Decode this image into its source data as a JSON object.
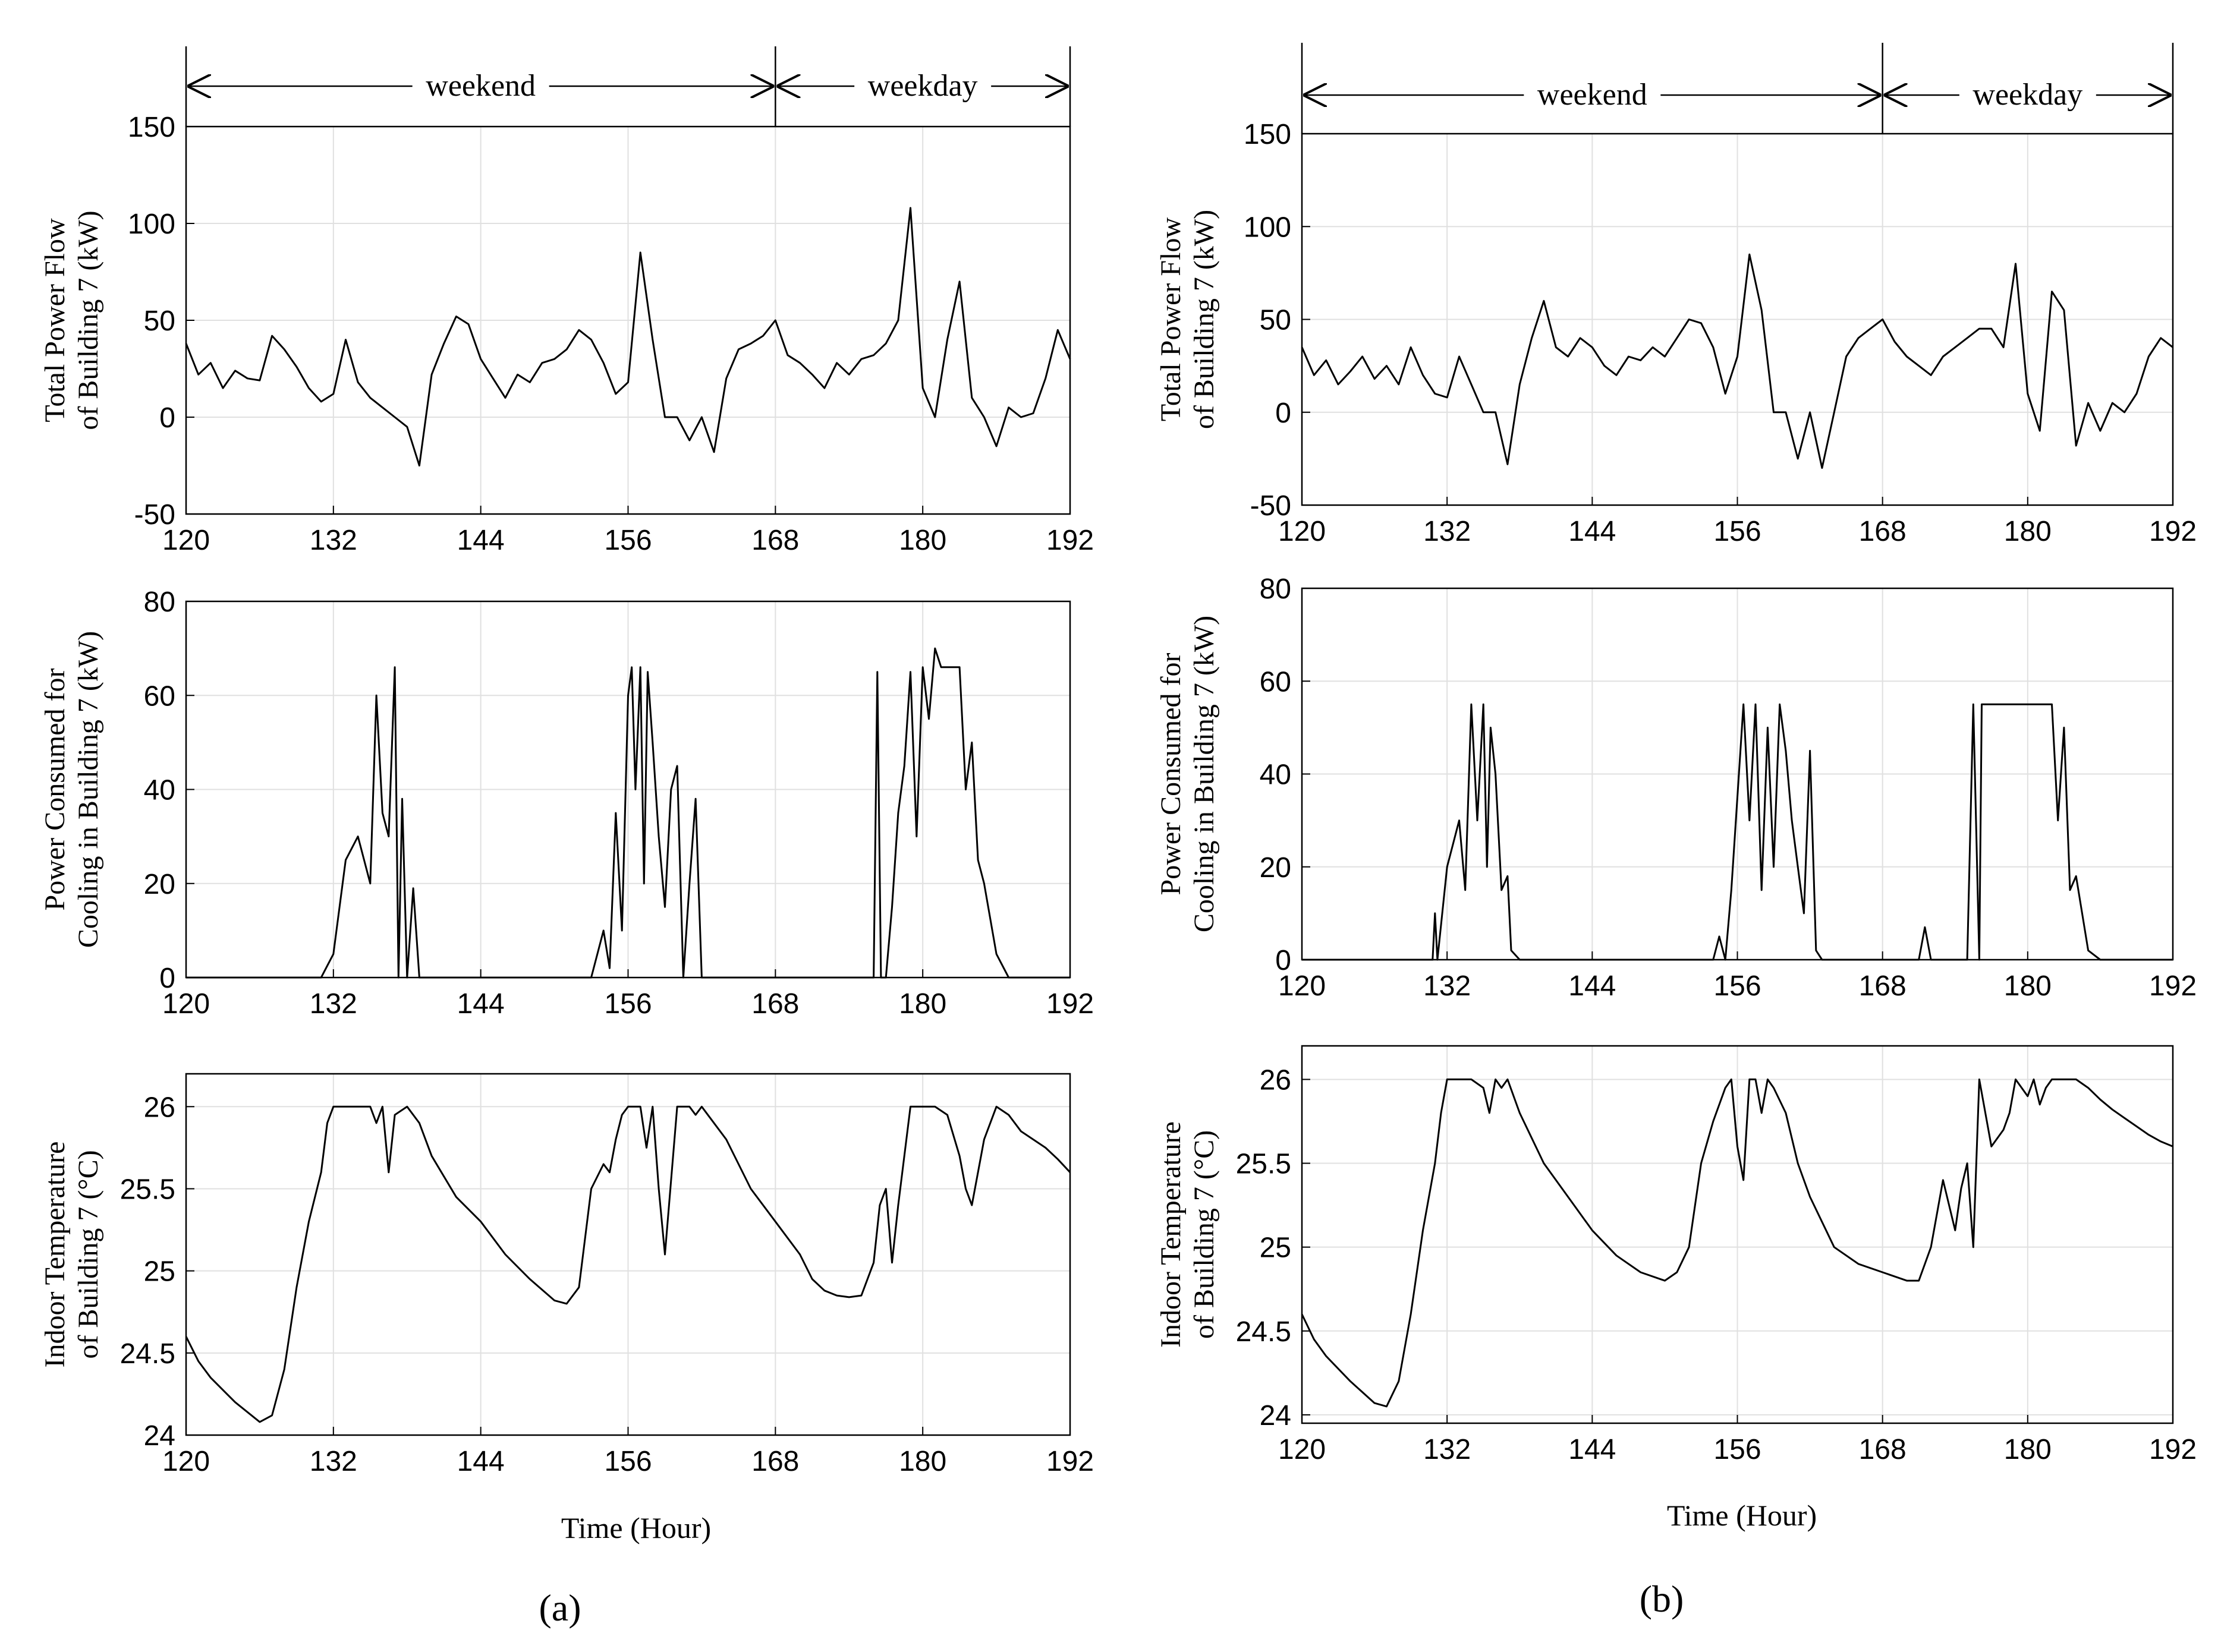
{
  "figure": {
    "panel_labels": [
      "(a)",
      "(b)"
    ],
    "week_labels": {
      "weekend": "weekend",
      "weekday": "weekday"
    },
    "xlabel": "Time (Hour)"
  },
  "chart_data": [
    {
      "panel": "a",
      "type": "line",
      "title": "",
      "ylabel_lines": [
        "Total Power Flow",
        "of Building 7 (kW)"
      ],
      "xlim": [
        120,
        192
      ],
      "ylim": [
        -50,
        150
      ],
      "xticks": [
        120,
        132,
        144,
        156,
        168,
        180,
        192
      ],
      "yticks": [
        -50,
        0,
        50,
        100,
        150
      ],
      "grid": true,
      "annotation": {
        "weekend": [
          120,
          168
        ],
        "weekday": [
          168,
          192
        ]
      },
      "x": [
        120,
        121,
        122,
        123,
        124,
        125,
        126,
        127,
        128,
        129,
        130,
        131,
        132,
        133,
        134,
        135,
        136,
        137,
        138,
        139,
        140,
        141,
        142,
        143,
        144,
        145,
        146,
        147,
        148,
        149,
        150,
        151,
        152,
        153,
        154,
        155,
        156,
        157,
        158,
        159,
        160,
        161,
        162,
        163,
        164,
        165,
        166,
        167,
        168,
        169,
        170,
        171,
        172,
        173,
        174,
        175,
        176,
        177,
        178,
        179,
        180,
        181,
        182,
        183,
        184,
        185,
        186,
        187,
        188,
        189,
        190,
        191,
        192
      ],
      "y": [
        38,
        22,
        28,
        15,
        24,
        20,
        19,
        42,
        35,
        26,
        15,
        8,
        12,
        40,
        18,
        10,
        5,
        0,
        -5,
        -25,
        22,
        38,
        52,
        48,
        30,
        20,
        10,
        22,
        18,
        28,
        30,
        35,
        45,
        40,
        28,
        12,
        18,
        85,
        40,
        0,
        0,
        -12,
        0,
        -18,
        20,
        35,
        38,
        42,
        50,
        32,
        28,
        22,
        15,
        28,
        22,
        30,
        32,
        38,
        50,
        108,
        15,
        0,
        40,
        70,
        10,
        0,
        -15,
        5,
        0,
        2,
        20,
        45,
        30
      ]
    },
    {
      "panel": "a",
      "type": "line",
      "title": "",
      "ylabel_lines": [
        "Power Consumed for",
        "Cooling in Building 7 (kW)"
      ],
      "xlim": [
        120,
        192
      ],
      "ylim": [
        0,
        80
      ],
      "xticks": [
        120,
        132,
        144,
        156,
        168,
        180,
        192
      ],
      "yticks": [
        0,
        20,
        40,
        60,
        80
      ],
      "grid": true,
      "x": [
        120,
        131,
        132,
        133,
        134,
        135,
        135.5,
        136,
        136.5,
        137,
        137.3,
        137.6,
        138,
        138.5,
        139,
        153,
        154,
        154.5,
        155,
        155.5,
        156,
        156.3,
        156.6,
        157,
        157.3,
        157.6,
        158,
        158.5,
        159,
        159.5,
        160,
        160.5,
        161,
        161.5,
        162,
        163,
        176,
        176.3,
        176.6,
        177,
        177.5,
        178,
        178.5,
        179,
        179.5,
        180,
        180.5,
        181,
        181.5,
        182,
        182.5,
        183,
        183.5,
        184,
        184.5,
        185,
        186,
        187,
        192
      ],
      "y": [
        0,
        0,
        5,
        25,
        30,
        20,
        60,
        35,
        30,
        66,
        0,
        38,
        0,
        19,
        0,
        0,
        10,
        2,
        35,
        10,
        60,
        66,
        40,
        66,
        20,
        65,
        50,
        30,
        15,
        40,
        45,
        0,
        20,
        38,
        0,
        0,
        0,
        65,
        0,
        0,
        15,
        35,
        45,
        65,
        30,
        66,
        55,
        70,
        66,
        66,
        66,
        66,
        40,
        50,
        25,
        20,
        5,
        0,
        0
      ]
    },
    {
      "panel": "a",
      "type": "line",
      "title": "",
      "ylabel_lines": [
        "Indoor Temperature",
        "of Building 7 (°C)"
      ],
      "xlim": [
        120,
        192
      ],
      "ylim": [
        24,
        26.2
      ],
      "xticks": [
        120,
        132,
        144,
        156,
        168,
        180,
        192
      ],
      "yticks": [
        24,
        24.5,
        25,
        25.5,
        26
      ],
      "grid": true,
      "x": [
        120,
        121,
        122,
        124,
        126,
        127,
        128,
        129,
        130,
        131,
        131.5,
        132,
        133,
        134,
        135,
        135.5,
        136,
        136.5,
        137,
        138,
        139,
        140,
        142,
        144,
        146,
        148,
        150,
        151,
        152,
        153,
        154,
        154.5,
        155,
        155.5,
        156,
        157,
        157.5,
        158,
        158.5,
        159,
        160,
        161,
        161.5,
        162,
        164,
        166,
        168,
        170,
        171,
        172,
        173,
        174,
        175,
        176,
        176.5,
        177,
        177.5,
        178,
        179,
        180,
        181,
        182,
        183,
        183.5,
        184,
        184.5,
        185,
        186,
        187,
        188,
        189,
        190,
        191,
        192
      ],
      "y": [
        24.6,
        24.45,
        24.35,
        24.2,
        24.08,
        24.12,
        24.4,
        24.9,
        25.3,
        25.6,
        25.9,
        26.0,
        26.0,
        26.0,
        26.0,
        25.9,
        26.0,
        25.6,
        25.95,
        26.0,
        25.9,
        25.7,
        25.45,
        25.3,
        25.1,
        24.95,
        24.82,
        24.8,
        24.9,
        25.5,
        25.65,
        25.6,
        25.8,
        25.95,
        26.0,
        26.0,
        25.75,
        26.0,
        25.5,
        25.1,
        26.0,
        26.0,
        25.95,
        26.0,
        25.8,
        25.5,
        25.3,
        25.1,
        24.95,
        24.88,
        24.85,
        24.84,
        24.85,
        25.05,
        25.4,
        25.5,
        25.05,
        25.4,
        26.0,
        26.0,
        26.0,
        25.95,
        25.7,
        25.5,
        25.4,
        25.6,
        25.8,
        26.0,
        25.95,
        25.85,
        25.8,
        25.75,
        25.68,
        25.6
      ]
    },
    {
      "panel": "b",
      "type": "line",
      "title": "",
      "ylabel_lines": [
        "Total Power Flow",
        "of Building 7 (kW)"
      ],
      "xlim": [
        120,
        192
      ],
      "ylim": [
        -50,
        150
      ],
      "xticks": [
        120,
        132,
        144,
        156,
        168,
        180,
        192
      ],
      "yticks": [
        -50,
        0,
        50,
        100,
        150
      ],
      "grid": true,
      "annotation": {
        "weekend": [
          120,
          168
        ],
        "weekday": [
          168,
          192
        ]
      },
      "x": [
        120,
        121,
        122,
        123,
        124,
        125,
        126,
        127,
        128,
        129,
        130,
        131,
        132,
        133,
        134,
        135,
        136,
        137,
        138,
        139,
        140,
        141,
        142,
        143,
        144,
        145,
        146,
        147,
        148,
        149,
        150,
        151,
        152,
        153,
        154,
        155,
        156,
        157,
        158,
        159,
        160,
        161,
        162,
        163,
        164,
        165,
        166,
        167,
        168,
        169,
        170,
        171,
        172,
        173,
        174,
        175,
        176,
        177,
        178,
        179,
        180,
        181,
        182,
        183,
        184,
        185,
        186,
        187,
        188,
        189,
        190,
        191,
        192
      ],
      "y": [
        35,
        20,
        28,
        15,
        22,
        30,
        18,
        25,
        15,
        35,
        20,
        10,
        8,
        30,
        15,
        0,
        0,
        -28,
        15,
        40,
        60,
        35,
        30,
        40,
        35,
        25,
        20,
        30,
        28,
        35,
        30,
        40,
        50,
        48,
        35,
        10,
        30,
        85,
        55,
        0,
        0,
        -25,
        0,
        -30,
        0,
        30,
        40,
        45,
        50,
        38,
        30,
        25,
        20,
        30,
        35,
        40,
        45,
        45,
        35,
        80,
        10,
        -10,
        65,
        55,
        -18,
        5,
        -10,
        5,
        0,
        10,
        30,
        40,
        35
      ]
    },
    {
      "panel": "b",
      "type": "line",
      "title": "",
      "ylabel_lines": [
        "Power Consumed for",
        "Cooling in Building 7 (kW)"
      ],
      "xlim": [
        120,
        192
      ],
      "ylim": [
        0,
        80
      ],
      "xticks": [
        120,
        132,
        144,
        156,
        168,
        180,
        192
      ],
      "yticks": [
        0,
        20,
        40,
        60,
        80
      ],
      "grid": true,
      "x": [
        120,
        130.8,
        131,
        131.2,
        132,
        133,
        133.5,
        134,
        134.5,
        135,
        135.3,
        135.6,
        136,
        136.5,
        137,
        137.3,
        138,
        153,
        154,
        154.5,
        155,
        155.5,
        156,
        156.5,
        157,
        157.5,
        158,
        158.5,
        159,
        159.5,
        160,
        160.5,
        161,
        161.5,
        162,
        162.5,
        163,
        170,
        171,
        171.5,
        172,
        173,
        174,
        175,
        175.5,
        176,
        176.2,
        177,
        178,
        179,
        180,
        181,
        181.5,
        182,
        182.5,
        183,
        183.5,
        184,
        184.5,
        185,
        186,
        192
      ],
      "y": [
        0,
        0,
        10,
        0,
        20,
        30,
        15,
        55,
        30,
        55,
        20,
        50,
        40,
        15,
        18,
        2,
        0,
        0,
        0,
        5,
        0,
        15,
        35,
        55,
        30,
        55,
        15,
        50,
        20,
        55,
        45,
        30,
        20,
        10,
        45,
        2,
        0,
        0,
        0,
        7,
        0,
        0,
        0,
        0,
        55,
        0,
        55,
        55,
        55,
        55,
        55,
        55,
        55,
        55,
        30,
        50,
        15,
        18,
        10,
        2,
        0,
        0
      ]
    },
    {
      "panel": "b",
      "type": "line",
      "title": "",
      "ylabel_lines": [
        "Indoor Temperature",
        "of Building 7 (°C)"
      ],
      "xlim": [
        120,
        192
      ],
      "ylim": [
        23.95,
        26.2
      ],
      "xticks": [
        120,
        132,
        144,
        156,
        168,
        180,
        192
      ],
      "yticks": [
        24,
        24.5,
        25,
        25.5,
        26
      ],
      "grid": true,
      "x": [
        120,
        121,
        122,
        124,
        126,
        127,
        128,
        129,
        130,
        131,
        131.5,
        132,
        133,
        134,
        135,
        135.5,
        136,
        136.5,
        137,
        138,
        140,
        142,
        144,
        146,
        148,
        150,
        151,
        152,
        153,
        154,
        155,
        155.5,
        156,
        156.5,
        157,
        157.5,
        158,
        158.5,
        159,
        160,
        161,
        162,
        164,
        166,
        168,
        170,
        171,
        172,
        173,
        174,
        174.5,
        175,
        175.5,
        176,
        177,
        178,
        178.5,
        179,
        180,
        180.5,
        181,
        181.5,
        182,
        183,
        184,
        185,
        186,
        187,
        188,
        189,
        190,
        191,
        192
      ],
      "y": [
        24.6,
        24.45,
        24.35,
        24.2,
        24.07,
        24.05,
        24.2,
        24.6,
        25.1,
        25.5,
        25.8,
        26.0,
        26.0,
        26.0,
        25.95,
        25.8,
        26.0,
        25.95,
        26.0,
        25.8,
        25.5,
        25.3,
        25.1,
        24.95,
        24.85,
        24.8,
        24.85,
        25.0,
        25.5,
        25.75,
        25.95,
        26.0,
        25.6,
        25.4,
        26.0,
        26.0,
        25.8,
        26.0,
        25.95,
        25.8,
        25.5,
        25.3,
        25.0,
        24.9,
        24.85,
        24.8,
        24.8,
        25.0,
        25.4,
        25.1,
        25.35,
        25.5,
        25.0,
        26.0,
        25.6,
        25.7,
        25.8,
        26.0,
        25.9,
        26.0,
        25.85,
        25.95,
        26.0,
        26.0,
        26.0,
        25.95,
        25.88,
        25.82,
        25.77,
        25.72,
        25.67,
        25.63,
        25.6
      ]
    }
  ]
}
